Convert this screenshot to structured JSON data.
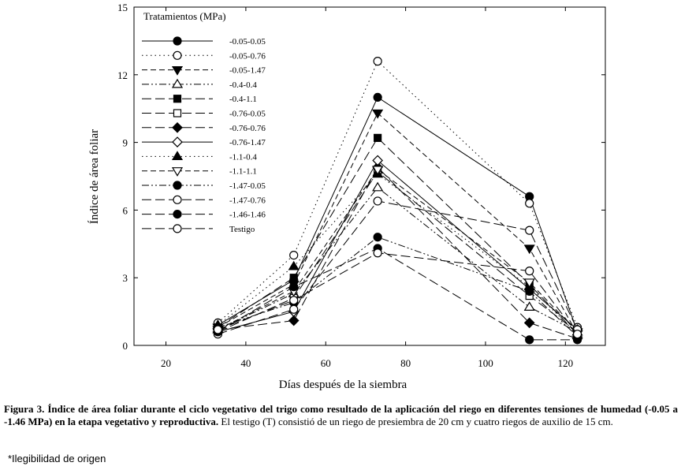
{
  "chart_data": {
    "type": "line",
    "title": "",
    "xlabel": "Días después de la siembra",
    "ylabel": "Índice de área foliar",
    "xlim": [
      12,
      130
    ],
    "ylim": [
      0,
      15
    ],
    "xticks": [
      20,
      40,
      60,
      80,
      100,
      120
    ],
    "yticks": [
      0,
      3,
      6,
      9,
      12,
      15
    ],
    "legend_title": "Tratamientos (MPa)",
    "legend_position": "top-left",
    "x": [
      33,
      52,
      73,
      111,
      123
    ],
    "series": [
      {
        "name": "-0.05-0.05",
        "marker": "circle-filled",
        "dash": "solid",
        "values": [
          0.9,
          2.9,
          11.0,
          6.6,
          0.6
        ]
      },
      {
        "name": "-0.05-0.76",
        "marker": "circle-open",
        "dash": "dot",
        "values": [
          1.0,
          4.0,
          12.6,
          6.3,
          0.8
        ]
      },
      {
        "name": "-0.05-1.47",
        "marker": "triangle-down-filled",
        "dash": "dash",
        "values": [
          0.8,
          2.7,
          10.3,
          4.3,
          0.5
        ]
      },
      {
        "name": "-0.4-0.4",
        "marker": "triangle-up-open",
        "dash": "dashdotdot",
        "values": [
          0.7,
          2.3,
          7.0,
          1.7,
          0.6
        ]
      },
      {
        "name": "-0.4-1.1",
        "marker": "square-filled",
        "dash": "longdash",
        "values": [
          0.8,
          3.0,
          9.2,
          2.7,
          0.5
        ]
      },
      {
        "name": "-0.76-0.05",
        "marker": "square-open",
        "dash": "longdash",
        "values": [
          0.6,
          2.1,
          7.7,
          2.2,
          0.6
        ]
      },
      {
        "name": "-0.76-0.76",
        "marker": "diamond-filled",
        "dash": "longdash",
        "values": [
          0.7,
          1.1,
          7.9,
          1.0,
          0.3
        ]
      },
      {
        "name": "-0.76-1.47",
        "marker": "diamond-open",
        "dash": "solid",
        "values": [
          0.6,
          1.5,
          8.2,
          2.5,
          0.7
        ]
      },
      {
        "name": "-1.1-0.4",
        "marker": "triangle-up-filled",
        "dash": "dot",
        "values": [
          0.9,
          3.5,
          7.6,
          2.6,
          0.5
        ]
      },
      {
        "name": "-1.1-1.1",
        "marker": "triangle-down-open",
        "dash": "dash",
        "values": [
          0.7,
          2.4,
          7.8,
          2.8,
          0.6
        ]
      },
      {
        "name": "-1.47-0.05",
        "marker": "circle-filled",
        "dash": "dashdotdot",
        "values": [
          0.8,
          1.9,
          4.8,
          2.4,
          0.4
        ]
      },
      {
        "name": "-1.47-0.76",
        "marker": "circle-open",
        "dash": "longdash",
        "values": [
          0.5,
          1.6,
          6.4,
          5.1,
          0.7
        ]
      },
      {
        "name": "-1.46-1.46",
        "marker": "circle-filled",
        "dash": "longdash",
        "values": [
          0.6,
          2.6,
          4.3,
          0.25,
          0.25
        ]
      },
      {
        "name": "Testigo",
        "marker": "circle-open",
        "dash": "longdash",
        "values": [
          0.7,
          2.0,
          4.1,
          3.3,
          0.5
        ]
      }
    ]
  },
  "caption": {
    "label": "Figura 3.",
    "bold_text": " Índice de área foliar durante el ciclo vegetativo del trigo como resultado de la aplicación del riego en diferentes tensiones de humedad (-0.05 a -1.46 MPa) en la etapa vegetativo y reproductiva.",
    "text": " El testigo (T) consistió de un riego de presiembra de 20 cm y cuatro riegos de auxilio de 15 cm."
  },
  "footnote": "*Ilegibilidad de origen"
}
